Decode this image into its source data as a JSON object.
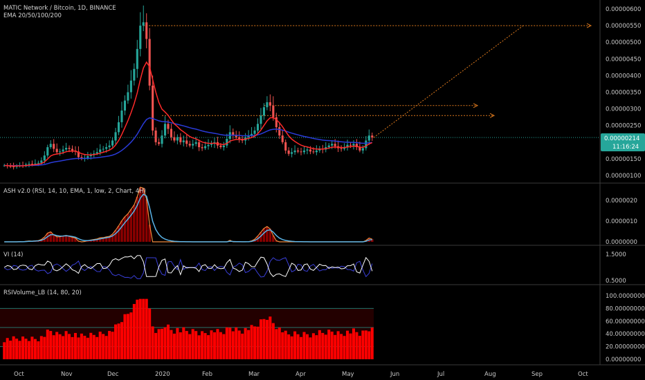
{
  "header": {
    "title": "MATIC Network / Bitcoin, 1D, BINANCE",
    "indicator": "EMA 20/50/100/200"
  },
  "price_tag": {
    "value": "0.00000214",
    "countdown": "11:16:24"
  },
  "colors": {
    "background": "#000000",
    "candle_up": "#26a69a",
    "candle_down": "#ef5350",
    "ema_fast": "#ff2a2a",
    "ema_slow": "#2a3bd9",
    "target_lines": "#e07b1e",
    "price_line": "#26a69a",
    "ash_bars": "#8b0000",
    "ash_line1": "#5ab4e8",
    "ash_line2": "#f08a3c",
    "vi_plus": "#ffffff",
    "vi_minus": "#3a3fd9",
    "rsiv_bars": "#ff0000",
    "tag_bg": "#26a69a"
  },
  "chart_data": [
    {
      "type": "candlestick",
      "name": "price",
      "x_ticks": [
        "Oct",
        "Nov",
        "Dec",
        "2020",
        "Feb",
        "Mar",
        "Apr",
        "May",
        "Jun",
        "Jul",
        "Aug",
        "Sep",
        "Oct"
      ],
      "y_ticks": [
        "0.00000600",
        "0.00000550",
        "0.00000500",
        "0.00000450",
        "0.00000400",
        "0.00000350",
        "0.00000300",
        "0.00000250",
        "0.00000200",
        "0.00000150",
        "0.00000100"
      ],
      "ylim": [
        8e-07,
        6.2e-06
      ],
      "last_price": 2.14e-06,
      "ema_fast_label": "EMA",
      "close_series": [
        1.3,
        1.28,
        1.27,
        1.26,
        1.28,
        1.31,
        1.3,
        1.33,
        1.35,
        1.34,
        1.36,
        1.38,
        1.45,
        1.6,
        1.85,
        1.95,
        1.8,
        1.7,
        1.72,
        1.78,
        1.83,
        1.8,
        1.75,
        1.72,
        1.55,
        1.5,
        1.53,
        1.58,
        1.62,
        1.66,
        1.7,
        1.78,
        1.8,
        1.85,
        1.9,
        2.05,
        2.3,
        2.6,
        2.95,
        3.25,
        3.5,
        3.85,
        4.2,
        4.8,
        5.5,
        5.6,
        5.1,
        3.7,
        2.35,
        2.0,
        1.95,
        2.2,
        2.55,
        2.4,
        2.15,
        2.05,
        2.15,
        2.0,
        2.05,
        1.95,
        1.9,
        1.95,
        2.0,
        1.85,
        1.82,
        1.88,
        1.92,
        1.95,
        2.0,
        1.9,
        1.85,
        1.9,
        2.1,
        2.3,
        2.2,
        2.15,
        2.1,
        2.05,
        2.15,
        2.2,
        2.25,
        2.35,
        2.55,
        2.8,
        3.05,
        3.2,
        3.1,
        2.75,
        2.45,
        2.2,
        2.0,
        1.75,
        1.65,
        1.7,
        1.75,
        1.72,
        1.7,
        1.75,
        1.78,
        1.72,
        1.7,
        1.75,
        1.8,
        1.78,
        1.85,
        1.9,
        1.95,
        1.88,
        1.82,
        1.8,
        1.85,
        1.92,
        1.9,
        1.95,
        1.85,
        1.75,
        1.82,
        2.05,
        2.2,
        2.14
      ],
      "targets": [
        5.5e-06,
        3.1e-06,
        2.8e-06
      ]
    },
    {
      "type": "area",
      "name": "ASH v2.0 (RSI, 14, 10, EMA, 1, low, 2, Chart, 4H)",
      "y_ticks": [
        "0.0000020",
        "0.0000010",
        "0.0000000"
      ],
      "ylim": [
        0,
        2.6e-06
      ]
    },
    {
      "type": "line",
      "name": "VI (14)",
      "y_ticks": [
        "1.5000",
        "0.5000"
      ],
      "ylim": [
        0.4,
        1.6
      ]
    },
    {
      "type": "bar",
      "name": "RSIVolume_LB (14, 80, 20)",
      "y_ticks": [
        "100.00000000",
        "80.00000000",
        "60.00000000",
        "40.00000000",
        "20.00000000",
        "0.00000000"
      ],
      "ylim": [
        0,
        100
      ],
      "levels": [
        80,
        50,
        20
      ]
    }
  ]
}
